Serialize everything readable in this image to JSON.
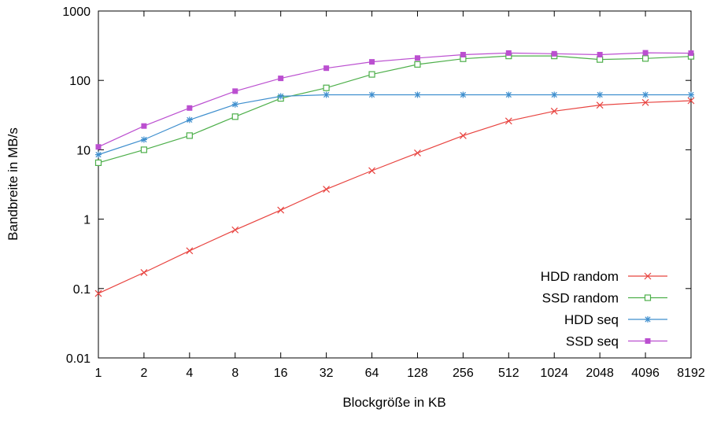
{
  "chart_data": {
    "type": "line",
    "title": "",
    "xlabel": "Blockgröße in KB",
    "ylabel": "Bandbreite in MB/s",
    "x_scale": "log2",
    "y_scale": "log10",
    "xlim": [
      1,
      8192
    ],
    "ylim": [
      0.01,
      1000
    ],
    "grid": false,
    "legend_position": "bottom-right",
    "x_ticks": [
      "1",
      "2",
      "4",
      "8",
      "16",
      "32",
      "64",
      "128",
      "256",
      "512",
      "1024",
      "2048",
      "4096",
      "8192"
    ],
    "y_ticks": [
      "0.01",
      "0.1",
      "1",
      "10",
      "100",
      "1000"
    ],
    "x": [
      1,
      2,
      4,
      8,
      16,
      32,
      64,
      128,
      256,
      512,
      1024,
      2048,
      4096,
      8192
    ],
    "series": [
      {
        "name": "HDD random",
        "color": "#e8433f",
        "marker": "cross",
        "values": [
          0.085,
          0.17,
          0.35,
          0.7,
          1.35,
          2.7,
          5,
          9,
          16,
          26,
          36,
          44,
          48,
          51
        ]
      },
      {
        "name": "SSD random",
        "color": "#4daf4a",
        "marker": "open-square",
        "values": [
          6.5,
          10,
          16,
          30,
          55,
          78,
          122,
          170,
          205,
          225,
          225,
          200,
          207,
          222
        ]
      },
      {
        "name": "HDD seq",
        "color": "#3f8fce",
        "marker": "asterisk",
        "values": [
          8.5,
          14,
          27,
          45,
          59,
          62,
          62,
          62,
          62,
          62,
          62,
          62,
          62,
          62
        ]
      },
      {
        "name": "SSD seq",
        "color": "#bb4fd0",
        "marker": "filled-square",
        "values": [
          11,
          22,
          40,
          70,
          107,
          150,
          185,
          210,
          235,
          248,
          242,
          235,
          250,
          247
        ]
      }
    ]
  }
}
